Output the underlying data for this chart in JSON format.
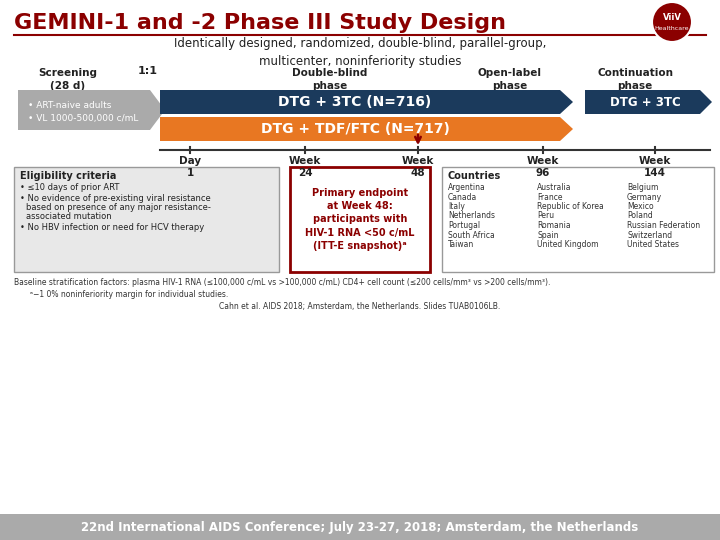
{
  "title": "GEMINI-1 and -2 Phase III Study Design",
  "subtitle": "Identically designed, randomized, double-blind, parallel-group,\nmulticenter, noninferiority studies",
  "title_color": "#8B0000",
  "bg_color": "#FFFFFF",
  "dark_blue": "#1B3A5C",
  "orange": "#E87722",
  "gray_arrow_color": "#AAAAAA",
  "red_box": "#8B0000",
  "footer_gray": "#AAAAAA",
  "screening_text": "Screening\n(28 d)",
  "ratio_text": "1:1",
  "phase_labels": [
    "Double-blind\nphase",
    "Open-label\nphase",
    "Continuation\nphase"
  ],
  "arm1_text": "DTG + 3TC (N=716)",
  "arm2_text": "DTG + TDF/FTC (N=717)",
  "cont_text": "DTG + 3TC",
  "eligibility_title": "Eligibility criteria",
  "eligibility_items": [
    "≤10 days of prior ART",
    "No evidence of pre-existing viral resistance\nbased on presence of any major resistance-\nassociated mutation",
    "No HBV infection or need for HCV therapy"
  ],
  "endpoint_text": "Primary endpoint\nat Week 48:\nparticipants with\nHIV-1 RNA <50 c/mL\n(ITT-E snapshot)ᵃ",
  "countries_title": "Countries",
  "countries_col1": [
    "Argentina",
    "Canada",
    "Italy",
    "Netherlands",
    "Portugal",
    "South Africa",
    "Taiwan"
  ],
  "countries_col2": [
    "Australia",
    "France",
    "Republic of Korea",
    "Peru",
    "Romania",
    "Spain",
    "United Kingdom"
  ],
  "countries_col3": [
    "Belgium",
    "Germany",
    "Mexico",
    "Poland",
    "Russian Federation",
    "Switzerland",
    "United States"
  ],
  "timeline_labels": [
    "Day\n1",
    "Week\n24",
    "Week\n48",
    "Week\n96",
    "Week\n144"
  ],
  "footnote1": "Baseline stratification factors: plasma HIV-1 RNA (≤100,000 c/mL vs >100,000 c/mL) CD4+ cell count (≤200 cells/mm³ vs >200 cells/mm³).",
  "footnote2": "ᵃ−1 0% noninferiority margin for individual studies.",
  "citation": "Cahn et al. AIDS 2018; Amsterdam, the Netherlands. Slides TUAB0106LB.",
  "footer": "22nd International AIDS Conference; July 23-27, 2018; Amsterdam, the Netherlands"
}
